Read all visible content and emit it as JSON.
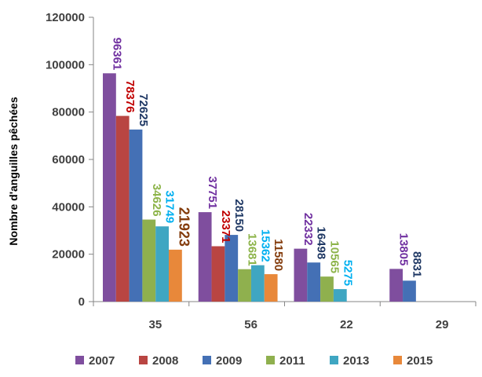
{
  "chart_data": {
    "type": "bar",
    "ylabel": "Nombre d'anguilles  pêchées",
    "xlabel": "",
    "ylim": [
      0,
      120000
    ],
    "yticks": [
      0,
      20000,
      40000,
      60000,
      80000,
      100000,
      120000
    ],
    "grid": false,
    "legend_position": "bottom",
    "categories": [
      "35",
      "56",
      "22",
      "29"
    ],
    "series": [
      {
        "name": "2007",
        "color": "#7F4E9E",
        "label_color": "#7030A0",
        "values": [
          96361,
          37751,
          22332,
          13805
        ]
      },
      {
        "name": "2008",
        "color": "#B94542",
        "label_color": "#C00000",
        "values": [
          78376,
          23371,
          null,
          null
        ]
      },
      {
        "name": "2009",
        "color": "#4470B5",
        "label_color": "#1F3864",
        "values": [
          72625,
          28150,
          16498,
          8831
        ]
      },
      {
        "name": "2011",
        "color": "#8FB04E",
        "label_color": "#8DB44A",
        "values": [
          34626,
          13681,
          10565,
          null
        ]
      },
      {
        "name": "2013",
        "color": "#3FA6C2",
        "label_color": "#00B0F0",
        "values": [
          31749,
          15362,
          5275,
          null
        ]
      },
      {
        "name": "2015",
        "color": "#E8883A",
        "label_color": "#843C0C",
        "values": [
          21923,
          11580,
          null,
          null
        ]
      }
    ]
  }
}
